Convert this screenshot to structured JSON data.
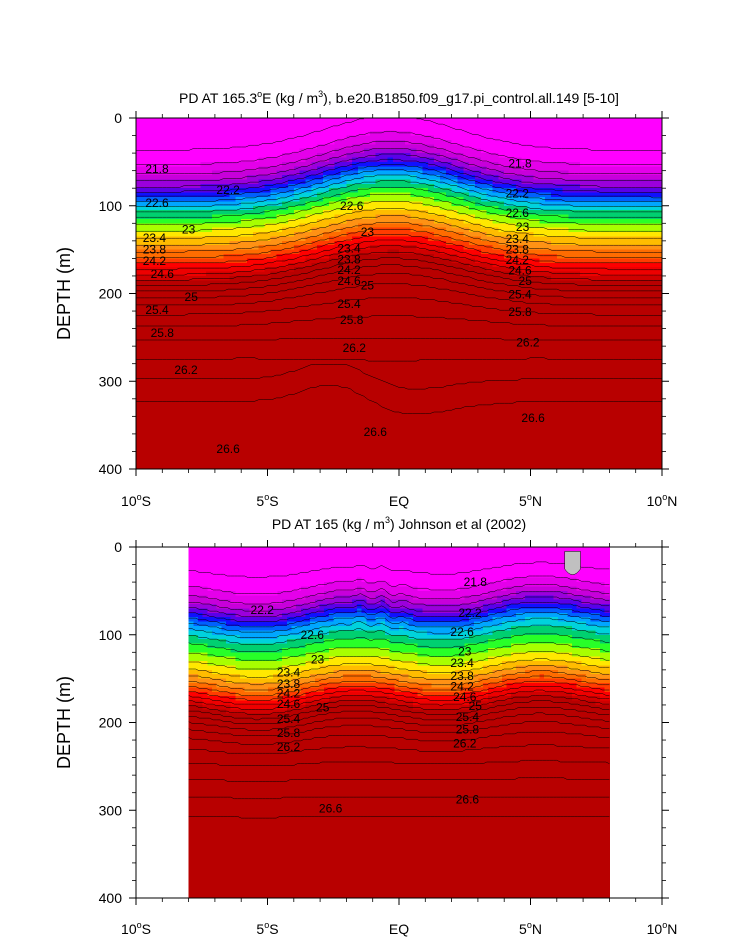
{
  "chart_data": [
    {
      "type": "heatmap",
      "title_parts": [
        "PD AT 165.3",
        "o",
        "E (kg / m",
        "3",
        "), b.e20.B1850.f09_g17.pi_control.all.149 [5-10]"
      ],
      "ylabel": "DEPTH (m)",
      "xlim": [
        -10,
        10
      ],
      "ylim": [
        400,
        0
      ],
      "x_ticks": [
        {
          "value": -10,
          "num": "10",
          "hemi": "S"
        },
        {
          "value": -5,
          "num": "5",
          "hemi": "S"
        },
        {
          "value": 0,
          "num": "EQ",
          "hemi": ""
        },
        {
          "value": 5,
          "num": "5",
          "hemi": "N"
        },
        {
          "value": 10,
          "num": "10",
          "hemi": "N"
        }
      ],
      "y_ticks": [
        "0",
        "100",
        "200",
        "300",
        "400"
      ],
      "data_extent": [
        -10,
        10
      ],
      "contour_labels": [
        {
          "text": "21.8",
          "x": -9.2,
          "y": 58
        },
        {
          "text": "21.8",
          "x": 4.6,
          "y": 52
        },
        {
          "text": "22.2",
          "x": -6.5,
          "y": 82
        },
        {
          "text": "22.2",
          "x": 4.5,
          "y": 86
        },
        {
          "text": "22.6",
          "x": -9.2,
          "y": 97
        },
        {
          "text": "22.6",
          "x": -1.8,
          "y": 100
        },
        {
          "text": "22.6",
          "x": 4.5,
          "y": 108
        },
        {
          "text": "23",
          "x": -8.0,
          "y": 127
        },
        {
          "text": "23",
          "x": -1.2,
          "y": 130
        },
        {
          "text": "23",
          "x": 4.7,
          "y": 124
        },
        {
          "text": "23.4",
          "x": -9.3,
          "y": 137
        },
        {
          "text": "23.4",
          "x": -1.9,
          "y": 149
        },
        {
          "text": "23.4",
          "x": 4.5,
          "y": 138
        },
        {
          "text": "23.8",
          "x": -9.3,
          "y": 150
        },
        {
          "text": "23.8",
          "x": -1.9,
          "y": 161
        },
        {
          "text": "23.8",
          "x": 4.5,
          "y": 150
        },
        {
          "text": "24.2",
          "x": -9.3,
          "y": 163
        },
        {
          "text": "24.2",
          "x": -1.9,
          "y": 173
        },
        {
          "text": "24.2",
          "x": 4.5,
          "y": 162
        },
        {
          "text": "24.6",
          "x": -9.0,
          "y": 178
        },
        {
          "text": "24.6",
          "x": -1.9,
          "y": 186
        },
        {
          "text": "24.6",
          "x": 4.6,
          "y": 174
        },
        {
          "text": "25",
          "x": -1.2,
          "y": 191
        },
        {
          "text": "25",
          "x": -7.9,
          "y": 204
        },
        {
          "text": "25",
          "x": 4.8,
          "y": 186
        },
        {
          "text": "25.4",
          "x": -9.2,
          "y": 219
        },
        {
          "text": "25.4",
          "x": -1.9,
          "y": 212
        },
        {
          "text": "25.4",
          "x": 4.6,
          "y": 201
        },
        {
          "text": "25.8",
          "x": -9.0,
          "y": 245
        },
        {
          "text": "25.8",
          "x": -1.8,
          "y": 230
        },
        {
          "text": "25.8",
          "x": 4.6,
          "y": 221
        },
        {
          "text": "26.2",
          "x": -1.7,
          "y": 262
        },
        {
          "text": "26.2",
          "x": 4.9,
          "y": 256
        },
        {
          "text": "26.2",
          "x": -8.1,
          "y": 287
        },
        {
          "text": "26.6",
          "x": -0.9,
          "y": 358
        },
        {
          "text": "26.6",
          "x": 5.1,
          "y": 342
        },
        {
          "text": "26.6",
          "x": -6.5,
          "y": 377
        }
      ]
    },
    {
      "type": "heatmap",
      "title_parts": [
        "PD AT 165 (kg / m",
        "3",
        ") Johnson et al (2002)"
      ],
      "ylabel": "DEPTH (m)",
      "xlim": [
        -10,
        10
      ],
      "ylim": [
        400,
        0
      ],
      "x_ticks": [
        {
          "value": -10,
          "num": "10",
          "hemi": "S"
        },
        {
          "value": -5,
          "num": "5",
          "hemi": "S"
        },
        {
          "value": 0,
          "num": "EQ",
          "hemi": ""
        },
        {
          "value": 5,
          "num": "5",
          "hemi": "N"
        },
        {
          "value": 10,
          "num": "10",
          "hemi": "N"
        }
      ],
      "y_ticks": [
        "0",
        "100",
        "200",
        "300",
        "400"
      ],
      "data_extent": [
        -8,
        8
      ],
      "contour_labels": [
        {
          "text": "21.8",
          "x": 2.9,
          "y": 40
        },
        {
          "text": "22.2",
          "x": -5.2,
          "y": 72
        },
        {
          "text": "22.2",
          "x": 2.7,
          "y": 75
        },
        {
          "text": "22.6",
          "x": -3.3,
          "y": 100
        },
        {
          "text": "22.6",
          "x": 2.4,
          "y": 97
        },
        {
          "text": "23",
          "x": -3.1,
          "y": 128
        },
        {
          "text": "23",
          "x": 2.5,
          "y": 119
        },
        {
          "text": "23.4",
          "x": -4.2,
          "y": 143
        },
        {
          "text": "23.4",
          "x": 2.4,
          "y": 132
        },
        {
          "text": "23.8",
          "x": -4.2,
          "y": 156
        },
        {
          "text": "23.8",
          "x": 2.4,
          "y": 147
        },
        {
          "text": "24.2",
          "x": -4.2,
          "y": 167
        },
        {
          "text": "24.2",
          "x": 2.4,
          "y": 159
        },
        {
          "text": "24.6",
          "x": -4.2,
          "y": 179
        },
        {
          "text": "24.6",
          "x": 2.5,
          "y": 171
        },
        {
          "text": "25",
          "x": -2.9,
          "y": 183
        },
        {
          "text": "25",
          "x": 2.9,
          "y": 181
        },
        {
          "text": "25.4",
          "x": -4.2,
          "y": 196
        },
        {
          "text": "25.4",
          "x": 2.6,
          "y": 194
        },
        {
          "text": "25.8",
          "x": -4.2,
          "y": 212
        },
        {
          "text": "25.8",
          "x": 2.6,
          "y": 208
        },
        {
          "text": "26.2",
          "x": -4.2,
          "y": 228
        },
        {
          "text": "26.2",
          "x": 2.5,
          "y": 224
        },
        {
          "text": "26.6",
          "x": -2.6,
          "y": 298
        },
        {
          "text": "26.6",
          "x": 2.6,
          "y": 288
        }
      ]
    }
  ]
}
